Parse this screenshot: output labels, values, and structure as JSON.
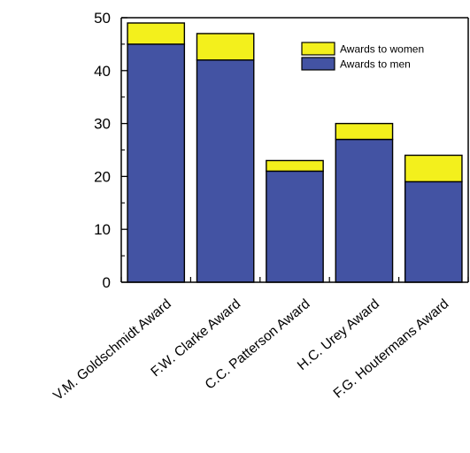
{
  "chart_data": {
    "type": "bar",
    "stacked": true,
    "categories": [
      "V.M. Goldschmidt Award",
      "F.W. Clarke Award",
      "C.C. Patterson Award",
      "H.C. Urey Award",
      "F.G. Houtermans Award"
    ],
    "series": [
      {
        "name": "Awards to men",
        "values": [
          45,
          42,
          21,
          27,
          19
        ],
        "color": "#4353a3"
      },
      {
        "name": "Awards to women",
        "values": [
          4,
          5,
          2,
          3,
          5
        ],
        "color": "#f3f01c"
      }
    ],
    "title": "",
    "xlabel": "",
    "ylabel": "",
    "ylim": [
      0,
      50
    ],
    "yticks": [
      0,
      10,
      20,
      30,
      40,
      50
    ],
    "grid": false,
    "legend_position": "top-right",
    "legend_order": [
      "Awards to women",
      "Awards to men"
    ]
  }
}
